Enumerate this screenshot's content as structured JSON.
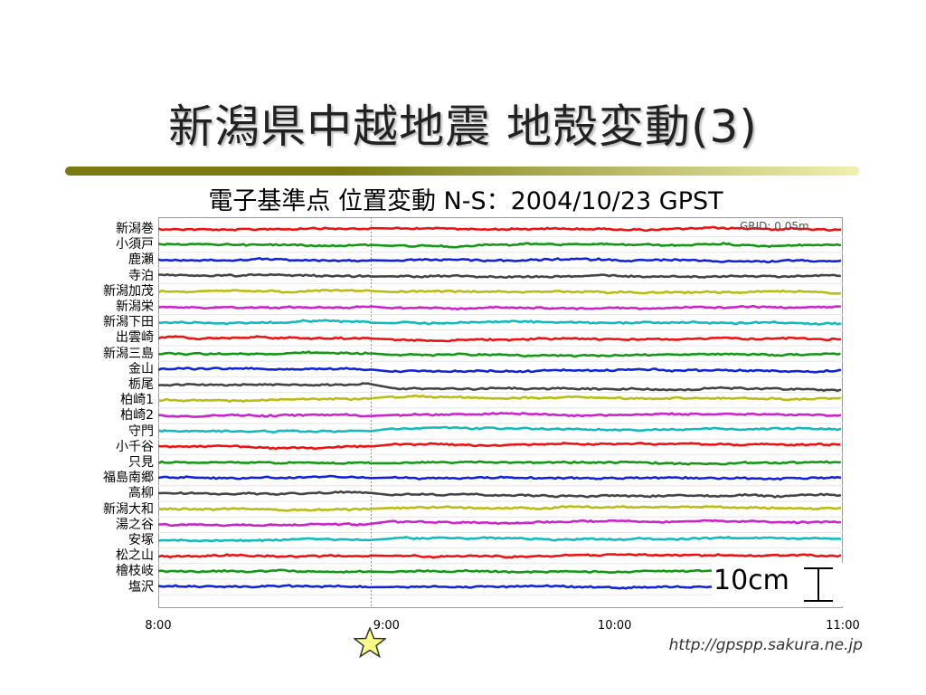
{
  "title": "新潟県中越地震 地殻変動(3)",
  "subtitle": "電子基準点 位置変動 N-S：2004/10/23 GPST",
  "grid_note": "GRID: 0.05m",
  "scale_label": "10cm",
  "source": "http://gpspp.sakura.ne.jp",
  "colors": {
    "rule_dark": "#7a7a10",
    "rule_light": "#f0f0b0",
    "series_cycle": [
      "#ee1111",
      "#119911",
      "#1122dd",
      "#444444",
      "#bbbb11",
      "#cc22cc",
      "#11bbbb"
    ],
    "event_line": "#999999",
    "star_fill": "#ffff88",
    "star_stroke": "#333333"
  },
  "chart_data": {
    "type": "line",
    "x_ticks": [
      "8:00",
      "9:00",
      "10:00",
      "11:00"
    ],
    "x_range": [
      "8:00",
      "11:00"
    ],
    "event_time": "8:56",
    "grid": true,
    "grid_spacing_m": 0.05,
    "stations": [
      {
        "name": "新潟巻",
        "step": 0
      },
      {
        "name": "小須戸",
        "step": 0.2
      },
      {
        "name": "鹿瀬",
        "step": 0
      },
      {
        "name": "寺泊",
        "step": 0.3
      },
      {
        "name": "新潟加茂",
        "step": 0.2
      },
      {
        "name": "新潟栄",
        "step": 0.3
      },
      {
        "name": "新潟下田",
        "step": 0.2
      },
      {
        "name": "出雲崎",
        "step": 0.6
      },
      {
        "name": "新潟三島",
        "step": 0.5
      },
      {
        "name": "金山",
        "step": 0.6
      },
      {
        "name": "栃尾",
        "step": 1.6
      },
      {
        "name": "柏崎1",
        "step": -0.8
      },
      {
        "name": "柏崎2",
        "step": -0.4
      },
      {
        "name": "守門",
        "step": -0.7
      },
      {
        "name": "小千谷",
        "step": -1.0
      },
      {
        "name": "只見",
        "step": 0
      },
      {
        "name": "福島南郷",
        "step": 0
      },
      {
        "name": "高柳",
        "step": 0.8
      },
      {
        "name": "新潟大和",
        "step": -0.5
      },
      {
        "name": "湯之谷",
        "step": -1.0
      },
      {
        "name": "安塚",
        "step": -0.5
      },
      {
        "name": "松之山",
        "step": 0
      },
      {
        "name": "檜枝岐",
        "step": 0
      },
      {
        "name": "塩沢",
        "step": 0
      }
    ]
  }
}
